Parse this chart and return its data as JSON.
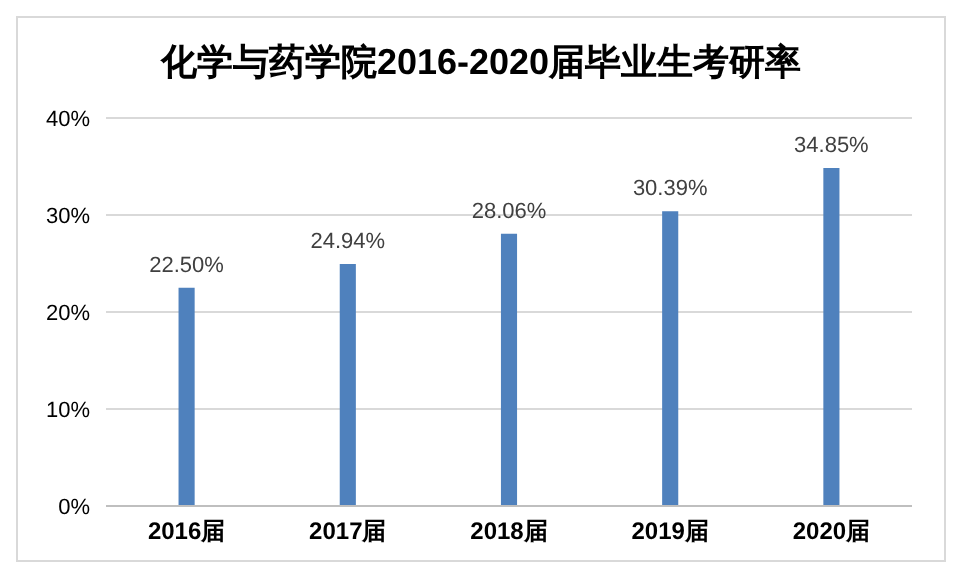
{
  "chart_data": {
    "type": "bar",
    "title": "化学与药学院2016-2020届毕业生考研率",
    "categories": [
      "2016届",
      "2017届",
      "2018届",
      "2019届",
      "2020届"
    ],
    "values": [
      22.5,
      24.94,
      28.06,
      30.39,
      34.85
    ],
    "value_labels": [
      "22.50%",
      "24.94%",
      "28.06%",
      "30.39%",
      "34.85%"
    ],
    "color": "#4f81bd",
    "ylim": [
      0,
      40
    ],
    "yticks": [
      {
        "value": 0,
        "label": "0%"
      },
      {
        "value": 10,
        "label": "10%"
      },
      {
        "value": 20,
        "label": "20%"
      },
      {
        "value": 30,
        "label": "30%"
      },
      {
        "value": 40,
        "label": "40%"
      }
    ],
    "grid": "y"
  }
}
